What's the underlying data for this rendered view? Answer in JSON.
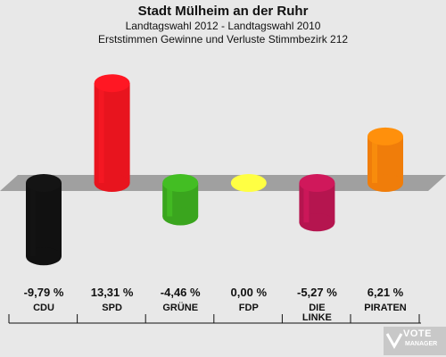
{
  "header": {
    "title": "Stadt Mülheim an der Ruhr",
    "subtitle1": "Landtagswahl 2012 - Landtagswahl 2010",
    "subtitle2": "Erststimmen Gewinne und Verluste Stimmbezirk 212"
  },
  "chart_data": {
    "type": "bar",
    "categories": [
      "CDU",
      "SPD",
      "GRÜNE",
      "FDP",
      "DIE LINKE",
      "PIRATEN"
    ],
    "values": [
      -9.79,
      13.31,
      -4.46,
      0.0,
      -5.27,
      6.21
    ],
    "value_labels": [
      "-9,79 %",
      "13,31 %",
      "-4,46 %",
      "0,00 %",
      "-5,27 %",
      "6,21 %"
    ],
    "colors": [
      "#111111",
      "#e8141e",
      "#3aa51e",
      "#f5e83a",
      "#b5154f",
      "#f07d0a"
    ],
    "title": "",
    "xlabel": "",
    "ylabel": "",
    "grid": false
  },
  "logo": {
    "line1": "VOTE",
    "line2": "MANAGER"
  }
}
